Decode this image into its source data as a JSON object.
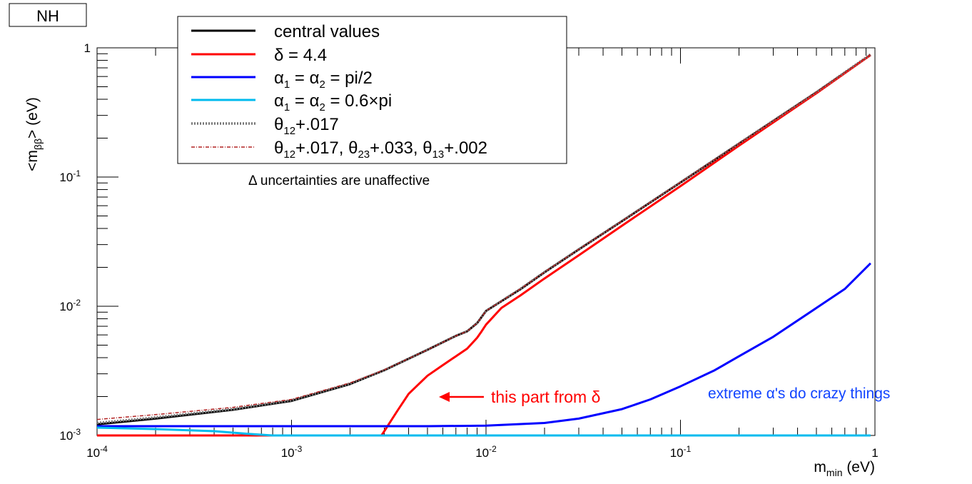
{
  "tag_label": "NH",
  "chart_data": {
    "type": "line",
    "xscale": "log",
    "yscale": "log",
    "xlim": [
      0.0001,
      1
    ],
    "ylim": [
      0.001,
      1
    ],
    "xlabel": "m_min (eV)",
    "ylabel": "<m_ββ> (eV)",
    "x_ticks": [
      {
        "value": 0.0001,
        "base": "10",
        "exp": "-4"
      },
      {
        "value": 0.001,
        "base": "10",
        "exp": "-3"
      },
      {
        "value": 0.01,
        "base": "10",
        "exp": "-2"
      },
      {
        "value": 0.1,
        "base": "10",
        "exp": "-1"
      },
      {
        "value": 1,
        "base": "1",
        "exp": ""
      }
    ],
    "y_ticks": [
      {
        "value": 0.001,
        "base": "10",
        "exp": "-3"
      },
      {
        "value": 0.01,
        "base": "10",
        "exp": "-2"
      },
      {
        "value": 0.1,
        "base": "10",
        "exp": "-1"
      },
      {
        "value": 1,
        "base": "1",
        "exp": ""
      }
    ],
    "legend_placement": "top-left",
    "grid": false,
    "series": [
      {
        "name": "central values",
        "color": "#000000",
        "style": "solid",
        "x": [
          0.0001,
          0.0002,
          0.0005,
          0.001,
          0.002,
          0.003,
          0.005,
          0.007,
          0.008,
          0.009,
          0.01,
          0.015,
          0.02,
          0.03,
          0.05,
          0.1,
          0.2,
          0.5,
          0.95
        ],
        "y": [
          0.00122,
          0.00135,
          0.00158,
          0.00185,
          0.0025,
          0.0032,
          0.0046,
          0.0059,
          0.0064,
          0.0074,
          0.0092,
          0.0135,
          0.0183,
          0.0275,
          0.0455,
          0.0905,
          0.181,
          0.452,
          0.88
        ]
      },
      {
        "name": "δ = 4.4",
        "color": "#ff0000",
        "style": "solid",
        "x": [
          0.0001,
          0.002,
          0.0029,
          0.003,
          0.0035,
          0.004,
          0.005,
          0.006,
          0.007,
          0.008,
          0.009,
          0.0095,
          0.01,
          0.012,
          0.015,
          0.02,
          0.03,
          0.05,
          0.1,
          0.2,
          0.5,
          0.95
        ],
        "y": [
          0.001,
          0.001,
          0.001,
          0.00108,
          0.00155,
          0.0021,
          0.0029,
          0.0035,
          0.0041,
          0.0047,
          0.0057,
          0.0064,
          0.0072,
          0.0097,
          0.0121,
          0.0164,
          0.0248,
          0.042,
          0.085,
          0.175,
          0.445,
          0.88
        ]
      },
      {
        "name": "α_1 = α_2 = pi/2",
        "color": "#0000ff",
        "style": "solid",
        "x": [
          0.0001,
          0.001,
          0.005,
          0.01,
          0.02,
          0.03,
          0.05,
          0.07,
          0.1,
          0.15,
          0.2,
          0.3,
          0.5,
          0.7,
          0.95
        ],
        "y": [
          0.00118,
          0.00118,
          0.00118,
          0.00119,
          0.00125,
          0.00135,
          0.0016,
          0.0019,
          0.0024,
          0.0032,
          0.0041,
          0.0058,
          0.0097,
          0.0136,
          0.0215
        ]
      },
      {
        "name": "α_1 = α_2 = 0.6×pi",
        "color": "#00bbee",
        "style": "solid",
        "x": [
          0.0001,
          0.0002,
          0.0004,
          0.0006,
          0.0008,
          0.001,
          0.01,
          0.1,
          0.95
        ],
        "y": [
          0.00115,
          0.00112,
          0.00108,
          0.00103,
          0.001,
          0.001,
          0.001,
          0.001,
          0.001
        ]
      },
      {
        "name": "θ_12+.017",
        "color": "#777777",
        "style": "dotted",
        "x": [
          0.0001,
          0.0002,
          0.0005,
          0.001,
          0.002,
          0.003,
          0.005,
          0.007,
          0.008,
          0.009,
          0.01,
          0.015,
          0.02,
          0.03,
          0.05,
          0.1,
          0.2,
          0.5,
          0.95
        ],
        "y": [
          0.00125,
          0.00138,
          0.0016,
          0.00187,
          0.00252,
          0.0032,
          0.0046,
          0.0059,
          0.0064,
          0.0074,
          0.0092,
          0.0136,
          0.0184,
          0.0276,
          0.0457,
          0.091,
          0.182,
          0.454,
          0.89
        ]
      },
      {
        "name": "θ_12+.017, θ_23+.033, θ_13+.002",
        "color": "#b22222",
        "style": "dashdot",
        "x": [
          0.0001,
          0.0002,
          0.0005,
          0.001,
          0.002,
          0.003,
          0.005,
          0.007,
          0.008,
          0.009,
          0.01,
          0.015,
          0.02,
          0.03,
          0.05,
          0.1,
          0.2,
          0.5,
          0.95
        ],
        "y": [
          0.00133,
          0.00145,
          0.00165,
          0.0019,
          0.00255,
          0.00322,
          0.0046,
          0.0059,
          0.0064,
          0.0074,
          0.0092,
          0.0136,
          0.0184,
          0.0276,
          0.0457,
          0.091,
          0.182,
          0.455,
          0.89
        ]
      }
    ],
    "legend": [
      {
        "parts": [
          "central values"
        ],
        "color": "#000000",
        "style": "solid"
      },
      {
        "parts": [
          "δ = 4.4"
        ],
        "color": "#ff0000",
        "style": "solid"
      },
      {
        "parts": [
          "α",
          "1",
          " = α",
          "2",
          " = pi/2"
        ],
        "color": "#0000ff",
        "style": "solid"
      },
      {
        "parts": [
          "α",
          "1",
          " = α",
          "2",
          " = 0.6×pi"
        ],
        "color": "#00bbee",
        "style": "solid"
      },
      {
        "parts": [
          "θ",
          "12",
          "+.017"
        ],
        "color": "#777777",
        "style": "dotted"
      },
      {
        "parts": [
          "θ",
          "12",
          "+.017, θ",
          "23",
          "+.033, θ",
          "13",
          "+.002"
        ],
        "color": "#b22222",
        "style": "dashdot"
      }
    ],
    "annotations": {
      "delta_note": "Δ uncertainties are unaffective",
      "arrow_text": "this part from δ",
      "arrow_color": "#ff0000",
      "alpha_note": "extreme α's do crazy things",
      "alpha_note_color": "#1144ff"
    }
  }
}
